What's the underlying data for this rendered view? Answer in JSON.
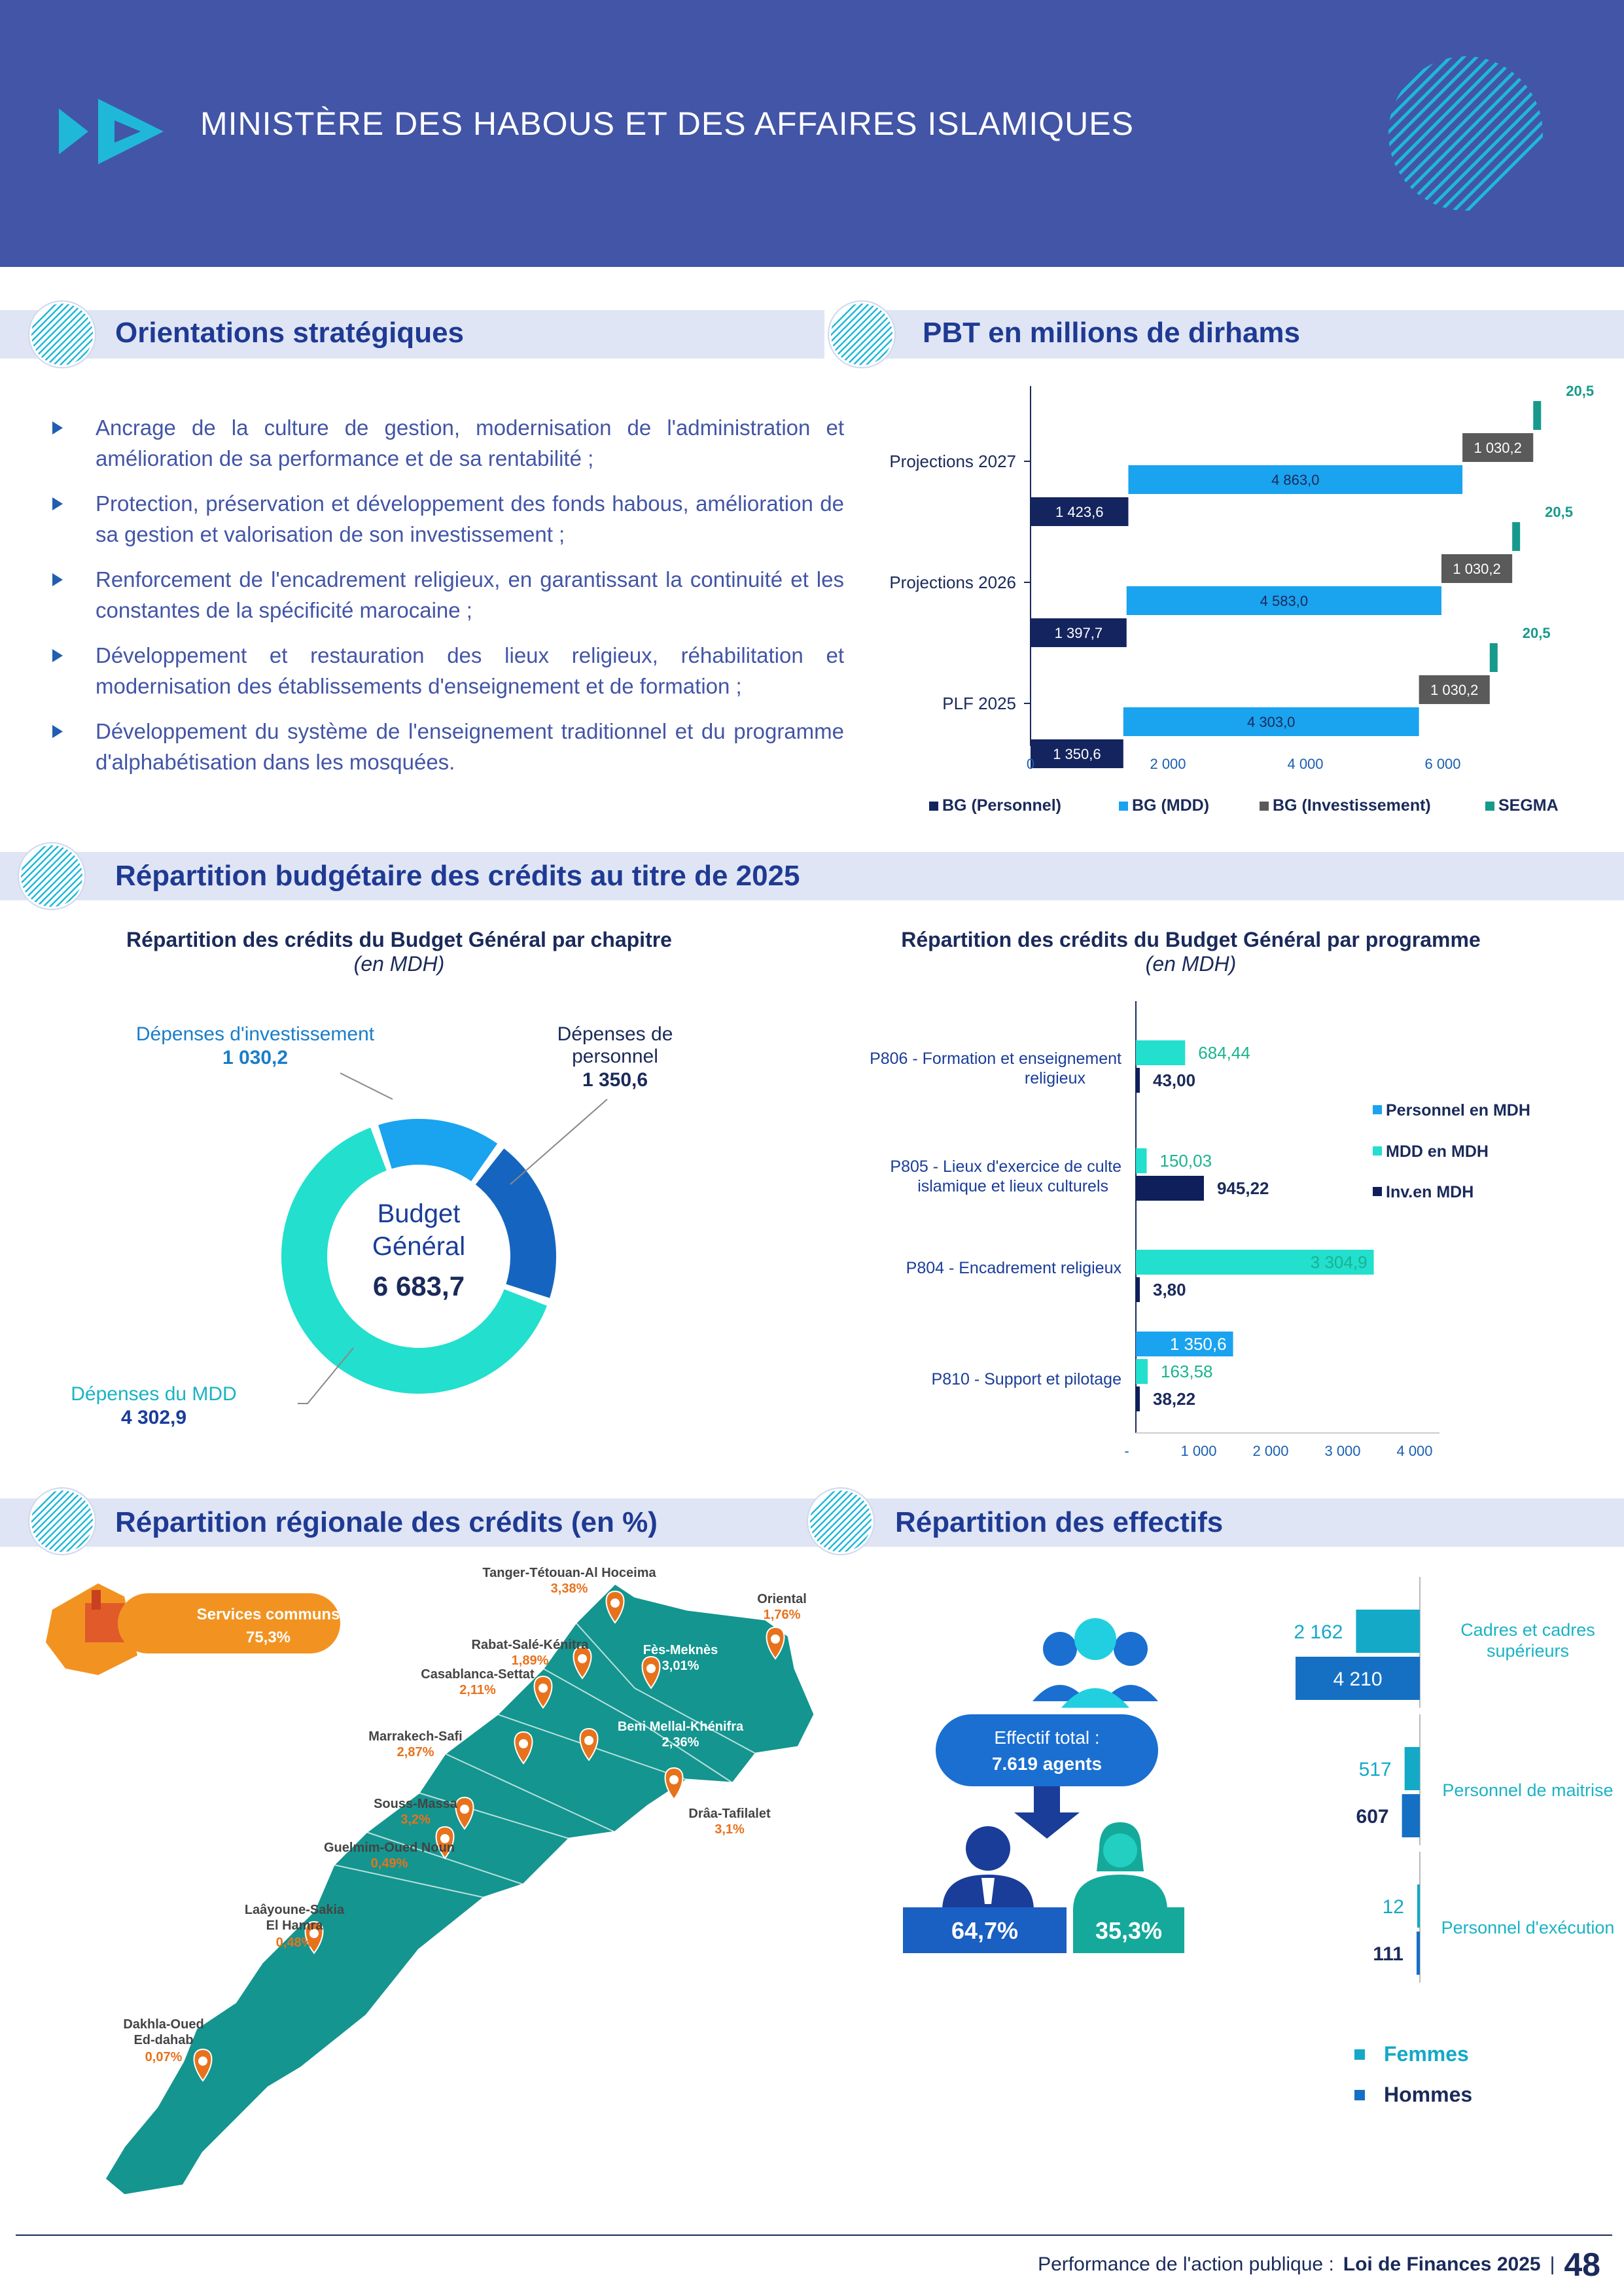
{
  "header": {
    "title": "MINISTÈRE DES HABOUS ET DES AFFAIRES ISLAMIQUES"
  },
  "sections": {
    "orientations": "Orientations stratégiques",
    "pbt": "PBT en millions de dirhams",
    "repartition_budgetaire": "Répartition budgétaire des crédits au titre de 2025",
    "repartition_regionale": "Répartition régionale des crédits (en %)",
    "effectifs": "Répartition des effectifs"
  },
  "orientations": [
    "Ancrage de la culture de gestion, modernisation de l'administration et amélioration de sa performance et de sa rentabilité ;",
    "Protection, préservation et développement des fonds habous, amélioration de sa gestion et valorisation de son investissement ;",
    "Renforcement de l'encadrement religieux, en garantissant la continuité et les constantes de la spécificité marocaine ;",
    "Développement et restauration des lieux religieux, réhabilitation et modernisation des établissements d'enseignement et de formation ;",
    "Développement du système de l'enseignement traditionnel et du programme d'alphabétisation dans les mosquées."
  ],
  "chart_data": [
    {
      "id": "pbt",
      "type": "bar",
      "orientation": "horizontal-stacked",
      "categories": [
        "Projections 2027",
        "Projections 2026",
        "PLF 2025"
      ],
      "series": [
        {
          "name": "BG (Personnel)",
          "color": "#14245e",
          "values": [
            1423.6,
            1397.7,
            1350.6
          ],
          "labels": [
            "1 423,6",
            "1 397,7",
            "1 350,6"
          ]
        },
        {
          "name": "BG (MDD)",
          "color": "#1aa3ef",
          "values": [
            4863.0,
            4583.0,
            4303.0
          ],
          "labels": [
            "4 863,0",
            "4 583,0",
            "4 303,0"
          ]
        },
        {
          "name": "BG (Investissement)",
          "color": "#5a5a5a",
          "values": [
            1030.2,
            1030.2,
            1030.2
          ],
          "labels": [
            "1 030,2",
            "1 030,2",
            "1 030,2"
          ]
        },
        {
          "name": "SEGMA",
          "color": "#159a8c",
          "values": [
            20.5,
            20.5,
            20.5
          ],
          "labels": [
            "20,5",
            "20,5",
            "20,5"
          ]
        }
      ],
      "xticks": [
        "0",
        "2 000",
        "4 000",
        "6 000"
      ],
      "xlim": [
        0,
        7500
      ]
    },
    {
      "id": "chapitre",
      "type": "pie",
      "title": "Répartition des crédits du Budget Général par chapitre",
      "subtitle": "(en MDH)",
      "center_label_1": "Budget",
      "center_label_2": "Général",
      "center_value": "6 683,7",
      "slices": [
        {
          "name": "Dépenses d'investissement",
          "value": 1030.2,
          "label": "1 030,2",
          "color": "#1aa3ef"
        },
        {
          "name": "Dépenses de personnel",
          "value": 1350.6,
          "label": "1 350,6",
          "color": "#1565c0"
        },
        {
          "name": "Dépenses du MDD",
          "value": 4302.9,
          "label": "4 302,9",
          "color": "#22dfce"
        }
      ]
    },
    {
      "id": "programme",
      "type": "bar",
      "orientation": "horizontal-grouped",
      "title": "Répartition des crédits du Budget Général par programme",
      "subtitle": "(en MDH)",
      "categories": [
        "P806 - Formation et enseignement religieux",
        "P805 - Lieux d'exercice de culte islamique et lieux culturels",
        "P804 - Encadrement religieux",
        "P810 - Support et pilotage"
      ],
      "series": [
        {
          "name": "Personnel en MDH",
          "color": "#1aa3ef",
          "values": [
            null,
            null,
            null,
            1350.6
          ],
          "labels": [
            "",
            "",
            "",
            "1 350,6"
          ]
        },
        {
          "name": "MDD en MDH",
          "color": "#22dfce",
          "values": [
            684.44,
            150.03,
            3304.9,
            163.58
          ],
          "labels": [
            "684,44",
            "150,03",
            "3 304,9",
            "163,58"
          ]
        },
        {
          "name": "Inv.en MDH",
          "color": "#0e1f5c",
          "values": [
            43.0,
            945.22,
            3.8,
            38.22
          ],
          "labels": [
            "43,00",
            "945,22",
            "3,80",
            "38,22"
          ]
        }
      ],
      "xticks": [
        "-",
        "1 000",
        "2 000",
        "3 000",
        "4 000"
      ],
      "xlim": [
        0,
        4000
      ]
    },
    {
      "id": "effectifs",
      "type": "bar",
      "orientation": "horizontal-grouped",
      "categories": [
        "Cadres et cadres supérieurs",
        "Personnel de maitrise",
        "Personnel d'exécution"
      ],
      "series": [
        {
          "name": "Femmes",
          "color": "#14a9c7",
          "values": [
            2162,
            517,
            12
          ],
          "labels": [
            "2 162",
            "517",
            "12"
          ]
        },
        {
          "name": "Hommes",
          "color": "#1570c4",
          "values": [
            4210,
            607,
            111
          ],
          "labels": [
            "4 210",
            "607",
            "111"
          ]
        }
      ]
    }
  ],
  "map": {
    "services_communs": {
      "label": "Services communs",
      "value": "75,3%"
    },
    "regions": [
      {
        "name": "Tanger-Tétouan-Al Hoceima",
        "value": "3,38%"
      },
      {
        "name": "Oriental",
        "value": "1,76%"
      },
      {
        "name": "Rabat-Salé-Kénitra",
        "value": "1,89%"
      },
      {
        "name": "Fès-Meknès",
        "value": "3,01%"
      },
      {
        "name": "Casablanca-Settat",
        "value": "2,11%"
      },
      {
        "name": "Marrakech-Safi",
        "value": "2,87%"
      },
      {
        "name": "Beni Mellal-Khénifra",
        "value": "2,36%"
      },
      {
        "name": "Souss-Massa",
        "value": "3,2%"
      },
      {
        "name": "Drâa-Tafilalet",
        "value": "3,1%"
      },
      {
        "name": "Guelmim-Oued Noun",
        "value": "0,49%"
      },
      {
        "name": "Laâyoune-Sakia El Hamra",
        "value": "0,48%"
      },
      {
        "name": "Dakhla-Oued Ed-dahab",
        "value": "0,07%"
      }
    ]
  },
  "effectifs": {
    "total_label": "Effectif total :",
    "total_value": "7.619 agents",
    "hommes_pct": "64,7%",
    "femmes_pct": "35,3%"
  },
  "footer": {
    "text": "Performance de l'action publique :",
    "bold": "Loi de Finances 2025",
    "sep": "|",
    "page": "48"
  }
}
